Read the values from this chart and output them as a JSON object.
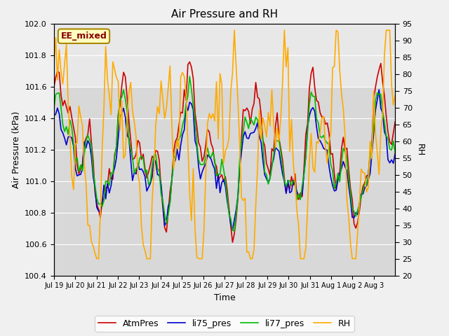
{
  "title": "Air Pressure and RH",
  "xlabel": "Time",
  "ylabel_left": "Air Pressure (kPa)",
  "ylabel_right": "RH",
  "ylim_left": [
    100.4,
    102.0
  ],
  "ylim_right": [
    20,
    95
  ],
  "yticks_left": [
    100.4,
    100.6,
    100.8,
    101.0,
    101.2,
    101.4,
    101.6,
    101.8,
    102.0
  ],
  "yticks_right": [
    20,
    25,
    30,
    35,
    40,
    45,
    50,
    55,
    60,
    65,
    70,
    75,
    80,
    85,
    90,
    95
  ],
  "xtick_labels": [
    "Jul 19",
    "Jul 20",
    "Jul 21",
    "Jul 22",
    "Jul 23",
    "Jul 24",
    "Jul 25",
    "Jul 26",
    "Jul 27",
    "Jul 28",
    "Jul 29",
    "Jul 30",
    "Jul 31",
    "Aug 1",
    "Aug 2",
    "Aug 3"
  ],
  "annotation_text": "EE_mixed",
  "colors": {
    "AtmPres": "#cc0000",
    "li75_pres": "#0000cc",
    "li77_pres": "#00bb00",
    "RH": "#ffaa00"
  },
  "fig_facecolor": "#f0f0f0",
  "plot_bg_color": "#d8d8d8",
  "plot_bg_top": "#e8e8e8",
  "grid_color": "#ffffff",
  "linewidth": 1.2,
  "seed": 42,
  "n_days": 16,
  "n_per_day": 12
}
